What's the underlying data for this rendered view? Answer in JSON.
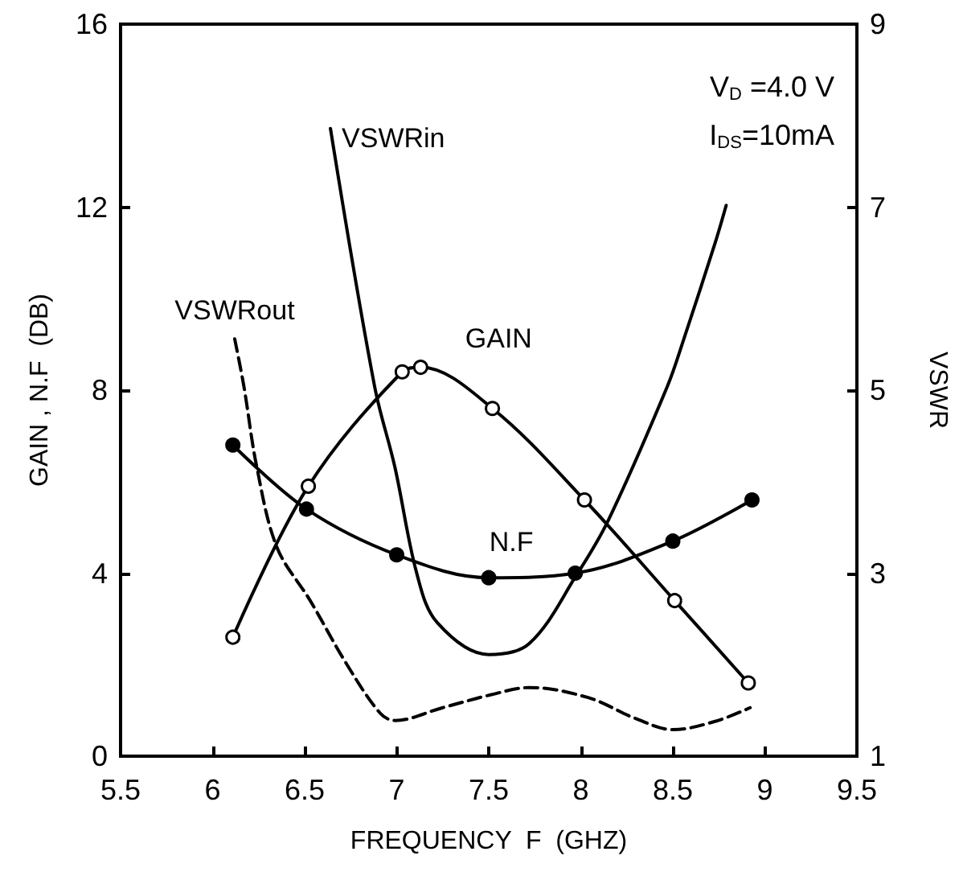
{
  "chart_data": {
    "type": "line",
    "xlabel": "FREQUENCY  F  (GHZ)",
    "ylabel": "GAIN , N.F  (DB)",
    "y2label": "VSWR",
    "annotations": [
      "V$_{D}$ =4.0 V",
      "I$_{DS}$=10mA"
    ],
    "xlim": [
      5.5,
      9.5
    ],
    "xticks": [
      5.5,
      6,
      6.5,
      7,
      7.5,
      8,
      8.5,
      9,
      9.5
    ],
    "ylim": [
      0,
      16
    ],
    "yticks": [
      0,
      4,
      8,
      12,
      16
    ],
    "y2lim": [
      1,
      9
    ],
    "y2ticks": [
      1,
      3,
      5,
      7,
      9
    ],
    "grid": false,
    "legend": false,
    "series": [
      {
        "name": "GAIN",
        "color": "#000000",
        "marker": "circle",
        "line_style": "solid",
        "x": [
          6.11,
          6.52,
          7.03,
          7.13,
          7.52,
          8.02,
          8.51,
          8.91
        ],
        "values": [
          2.6,
          5.9,
          8.4,
          8.5,
          7.6,
          5.6,
          3.4,
          1.6
        ]
      },
      {
        "name": "N.F",
        "color": "#000000",
        "marker": "circle",
        "line_style": "solid",
        "x": [
          6.11,
          6.51,
          7.0,
          7.5,
          7.97,
          8.5,
          8.93
        ],
        "values": [
          6.8,
          5.4,
          4.4,
          3.9,
          4.0,
          4.7,
          5.6
        ]
      },
      {
        "name": "VSWRin",
        "color": "#000000",
        "marker": "none",
        "line_style": "solid",
        "axis": "y2",
        "x": [
          6.64,
          6.88,
          6.99,
          7.11,
          7.22,
          7.5,
          7.72,
          7.98,
          8.15,
          8.47,
          8.56,
          8.73,
          8.79
        ],
        "values": [
          7.86,
          5.04,
          4.16,
          2.99,
          2.46,
          2.11,
          2.23,
          2.99,
          3.58,
          5.04,
          5.56,
          6.61,
          7.02
        ]
      },
      {
        "name": "VSWRout",
        "color": "#000000",
        "marker": "none",
        "line_style": "dashed",
        "axis": "y2",
        "x": [
          6.12,
          6.17,
          6.24,
          6.35,
          6.53,
          6.73,
          6.91,
          6.99,
          7.25,
          7.51,
          7.72,
          8.04,
          8.3,
          8.5,
          8.73,
          8.92
        ],
        "values": [
          5.56,
          5.04,
          4.16,
          3.28,
          2.7,
          2.0,
          1.47,
          1.39,
          1.53,
          1.67,
          1.75,
          1.64,
          1.41,
          1.29,
          1.38,
          1.53
        ]
      }
    ]
  }
}
